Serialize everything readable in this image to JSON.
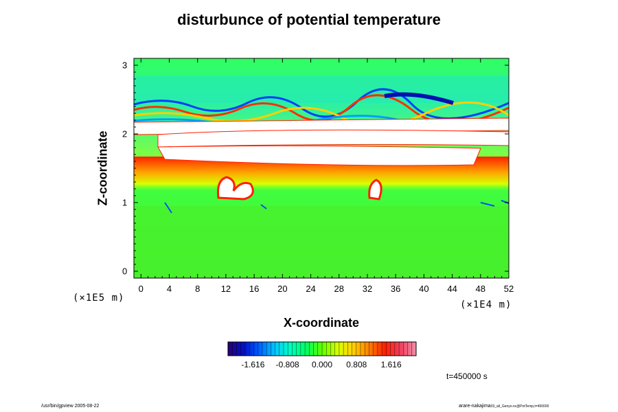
{
  "chart_data": {
    "type": "heatmap",
    "title": "disturbunce of potential temperature",
    "xlabel": "X-coordinate",
    "ylabel": "Z-coordinate",
    "x_unit": "(×1E4 m)",
    "y_unit": "(×1E5 m)",
    "xlim": [
      -1,
      52
    ],
    "ylim": [
      -0.1,
      3.1
    ],
    "x_ticks": [
      "0",
      "4",
      "8",
      "12",
      "16",
      "20",
      "24",
      "28",
      "32",
      "36",
      "40",
      "44",
      "48",
      "52"
    ],
    "y_ticks": [
      "0",
      "1",
      "2",
      "3"
    ],
    "colorbar": {
      "range": [
        -2.2,
        2.2
      ],
      "ticks": [
        "-1.616",
        "-0.808",
        "0.000",
        "0.808",
        "1.616"
      ],
      "tick_values": [
        -1.616,
        -0.808,
        0.0,
        0.808,
        1.616
      ],
      "colors": [
        "#2a0070",
        "#0010c8",
        "#0060ff",
        "#00c8ff",
        "#00ffc0",
        "#00ff60",
        "#60ff00",
        "#d8ff00",
        "#ffd000",
        "#ff8000",
        "#ff2000",
        "#f04060",
        "#f090a8"
      ]
    },
    "time_label": "t=450000 s"
  },
  "footer": {
    "left": "/usr/bin/gpview 2005-08-22",
    "right_main": "arare-nakajima",
    "right_small": "03_all_Genyo.nc@PotTemp,t=450000"
  }
}
